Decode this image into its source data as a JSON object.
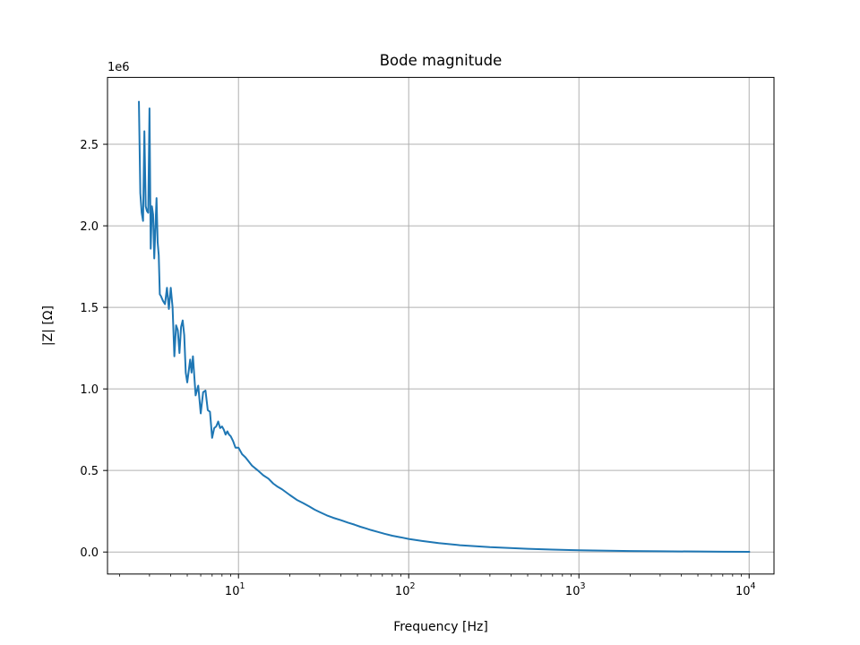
{
  "chart_data": {
    "type": "line",
    "title": "Bode magnitude",
    "xlabel": "Frequency [Hz]",
    "ylabel": "|Z| [Ω]",
    "x_scale": "log",
    "xlim": [
      1.7,
      14000
    ],
    "ylim": [
      -135000,
      2910000
    ],
    "y_offset_text": "1e6",
    "grid": true,
    "x_ticks": [
      {
        "value": 10,
        "base": "10",
        "exp": "1"
      },
      {
        "value": 100,
        "base": "10",
        "exp": "2"
      },
      {
        "value": 1000,
        "base": "10",
        "exp": "3"
      },
      {
        "value": 10000,
        "base": "10",
        "exp": "4"
      }
    ],
    "y_ticks": [
      {
        "value": 0,
        "label": "0.0"
      },
      {
        "value": 500000,
        "label": "0.5"
      },
      {
        "value": 1000000,
        "label": "1.0"
      },
      {
        "value": 1500000,
        "label": "1.5"
      },
      {
        "value": 2000000,
        "label": "2.0"
      },
      {
        "value": 2500000,
        "label": "2.5"
      }
    ],
    "series": [
      {
        "color": "#1f77b4",
        "x": [
          2.6,
          2.65,
          2.7,
          2.75,
          2.8,
          2.85,
          2.9,
          2.95,
          3.0,
          3.05,
          3.1,
          3.15,
          3.2,
          3.3,
          3.35,
          3.4,
          3.45,
          3.5,
          3.6,
          3.7,
          3.8,
          3.9,
          4.0,
          4.1,
          4.2,
          4.3,
          4.4,
          4.5,
          4.6,
          4.7,
          4.8,
          4.9,
          5.0,
          5.1,
          5.2,
          5.3,
          5.4,
          5.6,
          5.8,
          6.0,
          6.2,
          6.4,
          6.6,
          6.8,
          7.0,
          7.2,
          7.4,
          7.6,
          7.8,
          8.0,
          8.2,
          8.4,
          8.6,
          8.8,
          9.0,
          9.3,
          9.6,
          10.0,
          10.5,
          11,
          12,
          13,
          14,
          15,
          16,
          17,
          18,
          20,
          22,
          24,
          26,
          28,
          30,
          33,
          36,
          40,
          44,
          48,
          52,
          56,
          60,
          66,
          72,
          80,
          90,
          100,
          120,
          150,
          200,
          300,
          500,
          700,
          1000,
          2000,
          3000,
          5000,
          7000,
          10000
        ],
        "y": [
          2760000,
          2200000,
          2080000,
          2030000,
          2580000,
          2120000,
          2090000,
          2080000,
          2720000,
          1860000,
          2120000,
          2070000,
          1800000,
          2170000,
          1900000,
          1820000,
          1580000,
          1570000,
          1540000,
          1520000,
          1620000,
          1490000,
          1620000,
          1500000,
          1200000,
          1390000,
          1360000,
          1220000,
          1380000,
          1420000,
          1330000,
          1100000,
          1040000,
          1110000,
          1180000,
          1100000,
          1200000,
          960000,
          1020000,
          850000,
          980000,
          990000,
          870000,
          860000,
          700000,
          760000,
          770000,
          800000,
          760000,
          770000,
          750000,
          720000,
          740000,
          720000,
          710000,
          680000,
          640000,
          640000,
          600000,
          580000,
          530000,
          500000,
          470000,
          450000,
          420000,
          400000,
          385000,
          350000,
          320000,
          300000,
          280000,
          260000,
          245000,
          225000,
          210000,
          195000,
          180000,
          168000,
          155000,
          145000,
          135000,
          123000,
          112000,
          100000,
          90000,
          80000,
          68000,
          55000,
          42000,
          30000,
          20000,
          15000,
          11000,
          6000,
          4500,
          3000,
          2200,
          1500
        ]
      }
    ]
  }
}
